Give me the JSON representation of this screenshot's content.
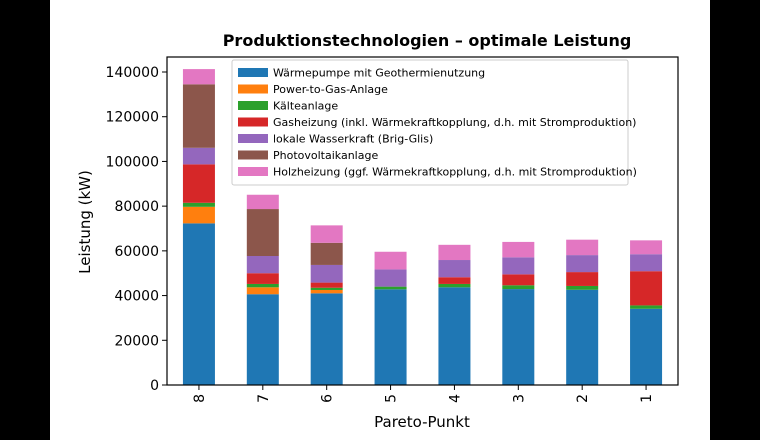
{
  "chart_data": {
    "type": "bar",
    "stacked": true,
    "title": "Produktionstechnologien – optimale Leistung",
    "xlabel": "Pareto-Punkt",
    "ylabel": "Leistung (kW)",
    "ylim": [
      0,
      145000
    ],
    "yticks": [
      0,
      20000,
      40000,
      60000,
      80000,
      100000,
      120000,
      140000
    ],
    "grid": false,
    "legend_position": "top",
    "categories": [
      "8",
      "7",
      "6",
      "5",
      "4",
      "3",
      "2",
      "1"
    ],
    "series": [
      {
        "name": "Wärmepumpe mit Geothermienutzung",
        "color": "#1f77b4",
        "values": [
          72300,
          40600,
          41000,
          42800,
          43700,
          42900,
          42600,
          34100
        ]
      },
      {
        "name": "Power-to-Gas-Anlage",
        "color": "#ff7f0e",
        "values": [
          7400,
          3100,
          1500,
          0,
          0,
          0,
          0,
          0
        ]
      },
      {
        "name": "Kälteanlage",
        "color": "#2ca02c",
        "values": [
          1800,
          1500,
          1000,
          1200,
          1500,
          1700,
          1700,
          1500
        ]
      },
      {
        "name": "Gasheizung (inkl. Wärmekraftkopplung, d.h. mit Stromproduktion)",
        "color": "#d62728",
        "values": [
          17200,
          4800,
          2300,
          0,
          3000,
          4900,
          6200,
          15300
        ]
      },
      {
        "name": "lokale Wasserkraft (Brig-Glis)",
        "color": "#9467bd",
        "values": [
          7400,
          7700,
          7900,
          7700,
          7700,
          7600,
          7600,
          7600
        ]
      },
      {
        "name": "Photovoltaikanlage",
        "color": "#8c564b",
        "values": [
          28400,
          21000,
          9900,
          0,
          0,
          0,
          0,
          0
        ]
      },
      {
        "name": "Holzheizung (ggf. Wärmekraftkopplung, d.h. mit Stromproduktion)",
        "color": "#e377c2",
        "values": [
          6800,
          6400,
          7800,
          7900,
          6800,
          6900,
          6900,
          6200
        ]
      }
    ]
  }
}
